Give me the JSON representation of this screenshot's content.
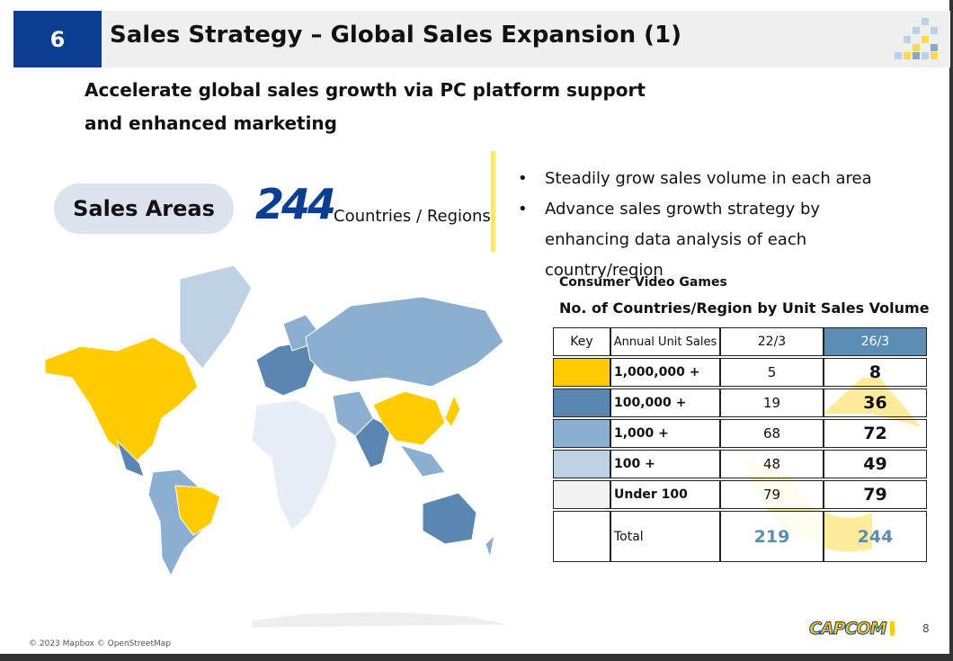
{
  "header": {
    "number": "6",
    "title": "Sales Strategy – Global Sales Expansion (1)"
  },
  "subtitle": "Accelerate global sales growth via PC platform support and enhanced marketing",
  "sales_areas": {
    "label": "Sales Areas",
    "count": "244",
    "unit": "Countries / Regions"
  },
  "bullets": [
    "Steadily grow sales volume in each area",
    "Advance sales growth strategy by enhancing data analysis of each country/region"
  ],
  "table": {
    "caption": "Consumer Video Games",
    "title": "No. of Countries/Region by Unit Sales Volume",
    "columns": [
      "Key",
      "Annual Unit Sales",
      "22/3",
      "26/3"
    ],
    "rows": [
      {
        "label": "1,000,000 +",
        "v22": "5",
        "v26": "8",
        "color": "#ffcc00"
      },
      {
        "label": "100,000 +",
        "v22": "19",
        "v26": "36",
        "color": "#5a86b1"
      },
      {
        "label": "1,000 +",
        "v22": "68",
        "v26": "72",
        "color": "#8caed1"
      },
      {
        "label": "100 +",
        "v22": "48",
        "v26": "49",
        "color": "#bdd0e4"
      },
      {
        "label": "Under 100",
        "v22": "79",
        "v26": "79",
        "color": "#f2f2f2"
      }
    ],
    "total": {
      "label": "Total",
      "v22": "219",
      "v26": "244"
    }
  },
  "map_credit": "© 2023 Mapbox © OpenStreetMap",
  "logo": "CAPCOM",
  "page": "8"
}
